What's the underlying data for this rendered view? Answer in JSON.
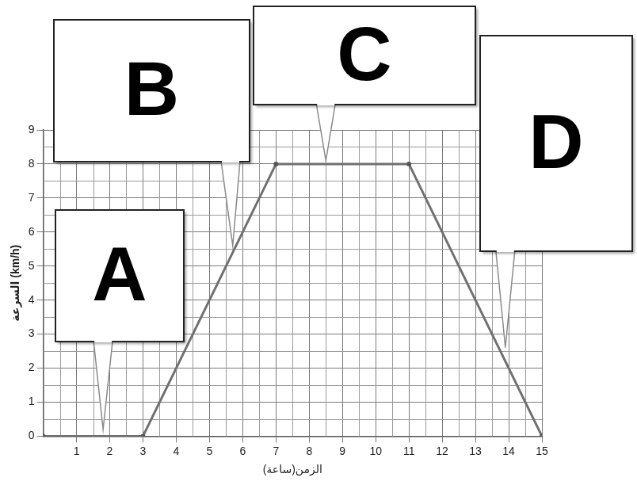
{
  "chart_data": {
    "type": "line",
    "x_label": "الزمن(ساعة)",
    "y_label": "السرعة (km/h)",
    "x": [
      0,
      3,
      7,
      11,
      15
    ],
    "values": [
      0,
      0,
      8,
      8,
      0
    ],
    "color": "#707070",
    "marker": "circle",
    "xlim": [
      0,
      15
    ],
    "ylim": [
      0,
      9
    ],
    "xticks": [
      1,
      2,
      3,
      4,
      5,
      6,
      7,
      8,
      9,
      10,
      11,
      12,
      13,
      14,
      15
    ],
    "yticks": [
      0,
      1,
      2,
      3,
      4,
      5,
      6,
      7,
      8,
      9
    ],
    "grid": true,
    "annotations": [
      {
        "text": "A",
        "x": 1.8,
        "y": 0.2
      },
      {
        "text": "B",
        "x": 5.7,
        "y": 5.6
      },
      {
        "text": "C",
        "x": 8.5,
        "y": 8.1
      },
      {
        "text": "D",
        "x": 13.9,
        "y": 2.6
      }
    ]
  }
}
